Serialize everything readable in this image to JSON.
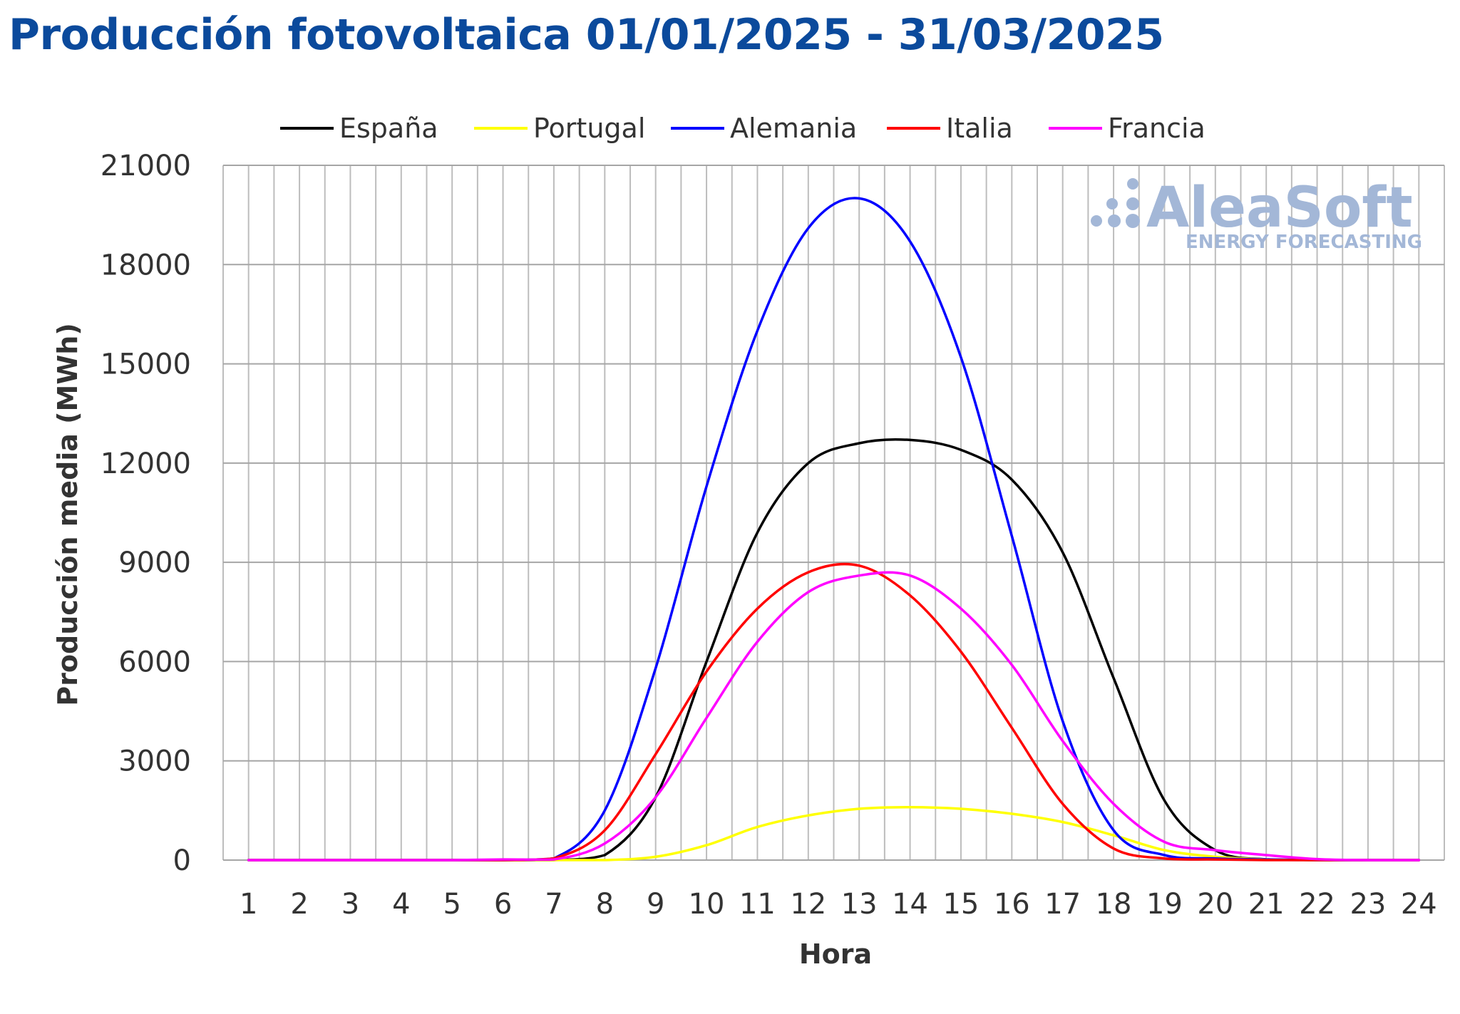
{
  "chart_data": {
    "type": "line",
    "title": "Producción fotovoltaica 01/01/2025 - 31/03/2025",
    "xlabel": "Hora",
    "ylabel": "Producción media (MWh)",
    "x": [
      1,
      2,
      3,
      4,
      5,
      6,
      7,
      8,
      9,
      10,
      11,
      12,
      13,
      14,
      15,
      16,
      17,
      18,
      19,
      20,
      21,
      22,
      23,
      24
    ],
    "x_tick_labels": [
      "1",
      "2",
      "3",
      "4",
      "5",
      "6",
      "7",
      "8",
      "9",
      "10",
      "11",
      "12",
      "13",
      "14",
      "15",
      "16",
      "17",
      "18",
      "19",
      "20",
      "21",
      "22",
      "23",
      "24"
    ],
    "ylim": [
      0,
      21000
    ],
    "y_ticks": [
      0,
      3000,
      6000,
      9000,
      12000,
      15000,
      18000,
      21000
    ],
    "y_tick_labels": [
      "0",
      "3000",
      "6000",
      "9000",
      "12000",
      "15000",
      "18000",
      "21000"
    ],
    "grid": true,
    "legend_position": "top",
    "series": [
      {
        "name": "España",
        "color": "#000000",
        "values": [
          0,
          0,
          0,
          0,
          0,
          0,
          0,
          150,
          1900,
          6000,
          9900,
          12000,
          12600,
          12700,
          12400,
          11500,
          9300,
          5500,
          1800,
          300,
          20,
          0,
          0,
          0
        ]
      },
      {
        "name": "Portugal",
        "color": "#ffff00",
        "values": [
          0,
          0,
          0,
          0,
          0,
          0,
          0,
          0,
          100,
          450,
          1000,
          1350,
          1550,
          1600,
          1550,
          1400,
          1150,
          750,
          300,
          100,
          20,
          0,
          0,
          0
        ]
      },
      {
        "name": "Alemania",
        "color": "#0000ff",
        "values": [
          0,
          0,
          0,
          0,
          0,
          0,
          50,
          1500,
          5800,
          11300,
          16000,
          19100,
          20000,
          18700,
          15200,
          9800,
          4200,
          900,
          150,
          50,
          20,
          0,
          0,
          0
        ]
      },
      {
        "name": "Italia",
        "color": "#ff0000",
        "values": [
          0,
          0,
          0,
          0,
          0,
          0,
          50,
          900,
          3200,
          5700,
          7600,
          8700,
          8900,
          8000,
          6300,
          4000,
          1700,
          350,
          50,
          20,
          0,
          0,
          0,
          0
        ]
      },
      {
        "name": "Francia",
        "color": "#ff00ff",
        "values": [
          0,
          0,
          0,
          0,
          0,
          20,
          20,
          500,
          1900,
          4300,
          6600,
          8100,
          8600,
          8600,
          7600,
          5900,
          3600,
          1700,
          550,
          300,
          150,
          30,
          0,
          0
        ]
      }
    ]
  },
  "watermark": {
    "brand": "AleaSoft",
    "subtitle": "ENERGY FORECASTING",
    "color": "#a3b7d7"
  }
}
